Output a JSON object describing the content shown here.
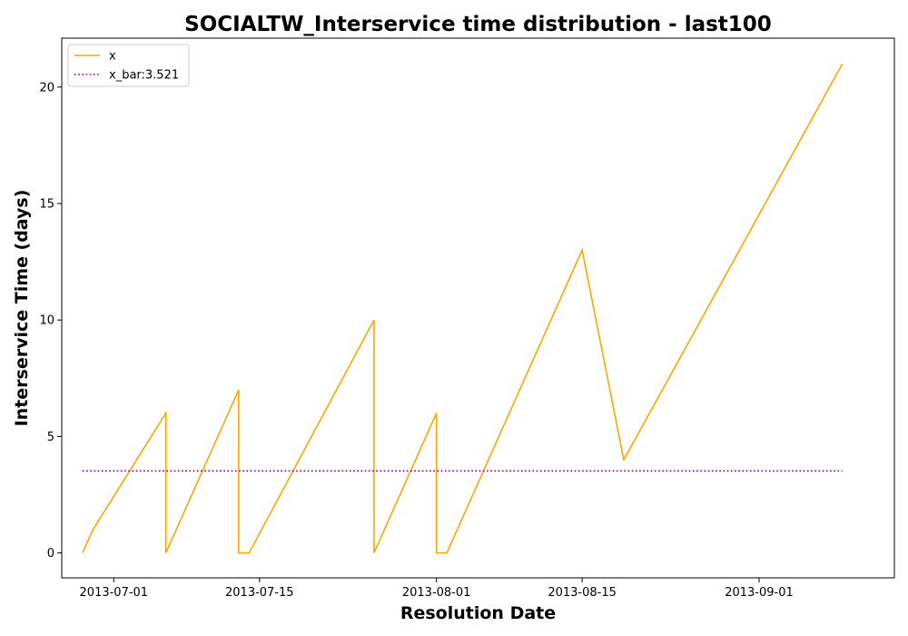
{
  "chart_data": {
    "type": "line",
    "title": "SOCIALTW_Interservice time distribution - last100",
    "xlabel": "Resolution Date",
    "ylabel": "Interservice Time (days)",
    "x_ticks": [
      "2013-07-01",
      "2013-07-15",
      "2013-08-01",
      "2013-08-15",
      "2013-09-01"
    ],
    "y_ticks": [
      "0",
      "5",
      "10",
      "15",
      "20"
    ],
    "xlim": [
      "2013-06-26",
      "2013-09-14"
    ],
    "ylim": [
      -1.07,
      22.1
    ],
    "grid": false,
    "legend_position": "top-left",
    "series": [
      {
        "name": "x",
        "color": "#ffa500",
        "style": "solid",
        "points": [
          [
            "2013-06-28",
            0
          ],
          [
            "2013-06-29",
            1
          ],
          [
            "2013-07-06",
            6
          ],
          [
            "2013-07-06",
            0
          ],
          [
            "2013-07-13",
            7
          ],
          [
            "2013-07-13",
            0
          ],
          [
            "2013-07-14",
            0
          ],
          [
            "2013-07-26",
            10
          ],
          [
            "2013-07-26",
            0
          ],
          [
            "2013-08-01",
            6
          ],
          [
            "2013-08-01",
            0
          ],
          [
            "2013-08-02",
            0
          ],
          [
            "2013-08-15",
            13
          ],
          [
            "2013-08-19",
            4
          ],
          [
            "2013-09-09",
            21
          ]
        ]
      },
      {
        "name": "x_bar:3.521",
        "color": "#800080",
        "style": "dotted",
        "points": [
          [
            "2013-06-28",
            3.521
          ],
          [
            "2013-09-09",
            3.521
          ]
        ]
      }
    ]
  }
}
